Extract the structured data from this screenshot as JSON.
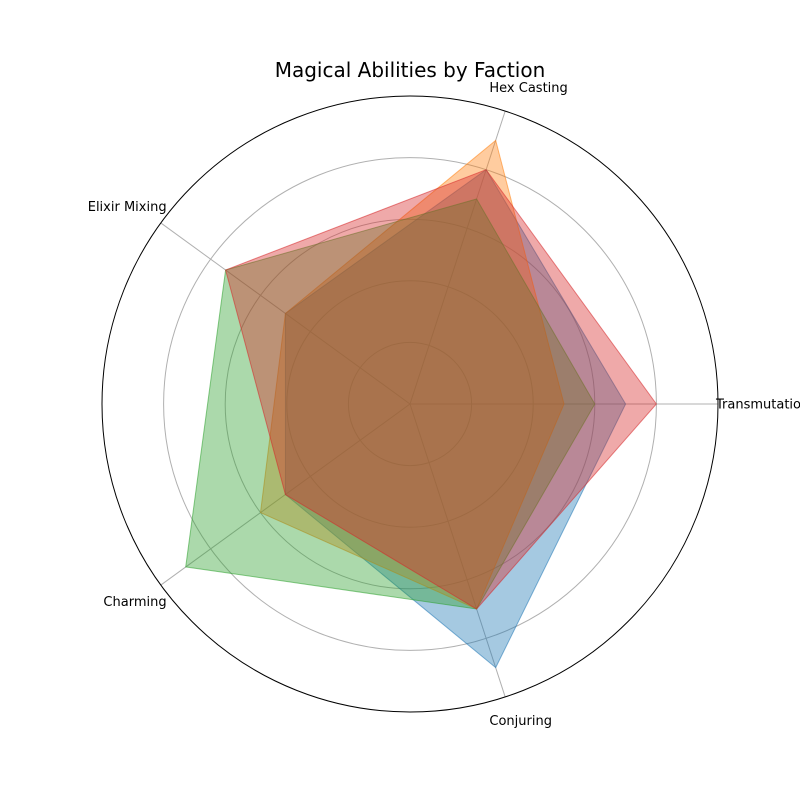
{
  "chart_data": {
    "type": "radar",
    "title": "Magical Abilities by Faction",
    "axes": [
      "Transmutation",
      "Hex Casting",
      "Elixir Mixing",
      "Charming",
      "Conjuring"
    ],
    "rlim": [
      0,
      5
    ],
    "rings": [
      1,
      2,
      3,
      4,
      5
    ],
    "grid": true,
    "legend": "none",
    "series": [
      {
        "values": [
          3.5,
          4.0,
          2.5,
          2.5,
          4.5
        ],
        "color": "#1f77b4"
      },
      {
        "values": [
          2.5,
          4.5,
          2.5,
          3.0,
          3.5
        ],
        "color": "#ff7f0e"
      },
      {
        "values": [
          3.0,
          3.5,
          3.7,
          4.5,
          3.5
        ],
        "color": "#2ca02c"
      },
      {
        "values": [
          4.0,
          4.0,
          3.7,
          2.5,
          3.5
        ],
        "color": "#d62728"
      }
    ]
  }
}
